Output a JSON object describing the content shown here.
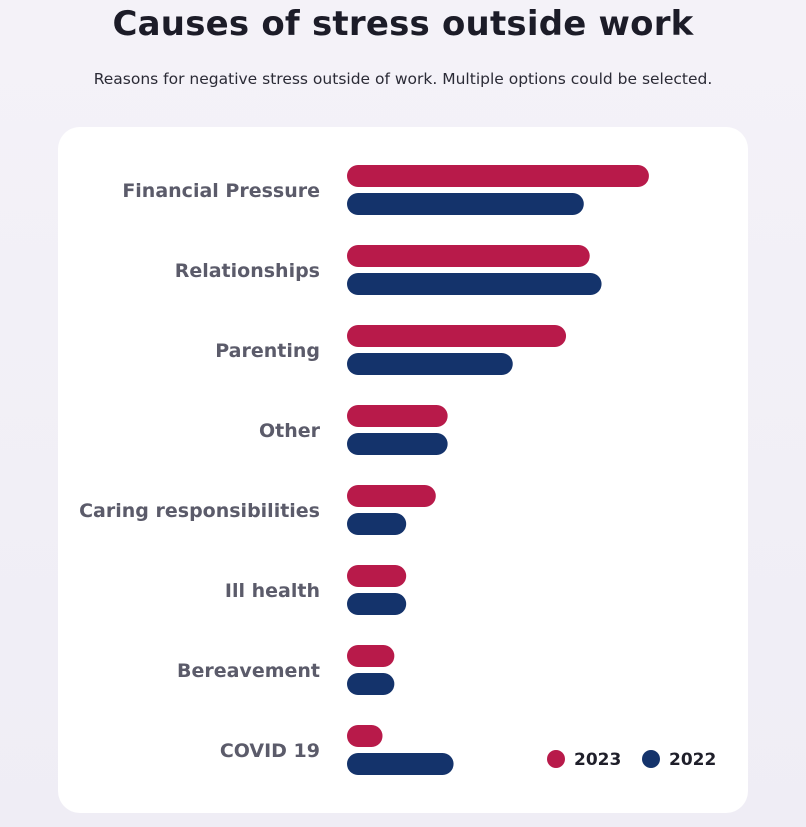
{
  "header": {
    "title": "Causes of stress outside work",
    "subtitle": "Reasons for negative stress outside of work. Multiple options could be selected."
  },
  "colors": {
    "series_2023": "#b81a4a",
    "series_2022": "#14336b"
  },
  "chart_data": {
    "type": "bar",
    "orientation": "horizontal",
    "title": "Causes of stress outside work",
    "categories": [
      "Financial Pressure",
      "Relationships",
      "Parenting",
      "Other",
      "Caring responsibilities",
      "Ill health",
      "Bereavement",
      "COVID 19"
    ],
    "series": [
      {
        "name": "2023",
        "values": [
          51,
          41,
          37,
          17,
          15,
          10,
          8,
          6
        ]
      },
      {
        "name": "2022",
        "values": [
          40,
          43,
          28,
          17,
          10,
          10,
          8,
          18
        ]
      }
    ],
    "xlim": [
      0,
      60
    ],
    "grid": false,
    "legend_position": "bottom-right"
  }
}
